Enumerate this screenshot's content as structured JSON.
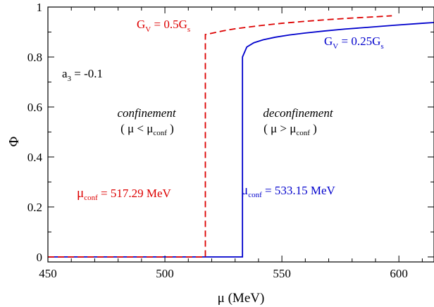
{
  "chart_data": {
    "type": "line",
    "xlabel": "μ (MeV)",
    "ylabel": "Φ",
    "xlim": [
      450,
      615
    ],
    "ylim": [
      -0.02,
      1.0
    ],
    "x_ticks": [
      450,
      500,
      550,
      600
    ],
    "x_tick_labels": [
      "450",
      "500",
      "550",
      "600"
    ],
    "y_ticks": [
      0,
      0.2,
      0.4,
      0.6,
      0.8,
      1.0
    ],
    "y_tick_labels": [
      "0",
      "0.2",
      "0.4",
      "0.6",
      "0.8",
      "1"
    ],
    "series": [
      {
        "name": "G_V = 0.25G_s",
        "color": "#0000cc",
        "dashed": false,
        "x": [
          450,
          533.15,
          533.15,
          535,
          538,
          542,
          547,
          553,
          560,
          568,
          577,
          587,
          598,
          610,
          615
        ],
        "y": [
          0.0,
          0.0,
          0.8,
          0.84,
          0.857,
          0.869,
          0.879,
          0.888,
          0.896,
          0.904,
          0.912,
          0.919,
          0.927,
          0.935,
          0.938
        ]
      },
      {
        "name": "G_V = 0.5G_s",
        "color": "#dd0000",
        "dashed": true,
        "x": [
          450,
          517.29,
          517.29,
          520,
          525,
          530,
          540,
          550,
          560,
          570,
          580,
          590,
          597
        ],
        "y": [
          0.0,
          0.0,
          0.89,
          0.895,
          0.905,
          0.913,
          0.925,
          0.935,
          0.943,
          0.95,
          0.956,
          0.961,
          0.965
        ]
      }
    ]
  },
  "annotations": {
    "param": {
      "main": "a",
      "sub": "3",
      "rest": " = -0.1"
    },
    "conf_title": "confinement",
    "conf_cond": {
      "open": "( μ < μ",
      "sub": "conf",
      "close": " )"
    },
    "deconf_title": "deconfinement",
    "deconf_cond": {
      "open": "( μ > μ",
      "sub": "conf",
      "close": " )"
    },
    "red_label": {
      "main": "G",
      "sub": "V",
      "mid": " = 0.5G",
      "sub2": "s"
    },
    "blue_label": {
      "main": "G",
      "sub": "V",
      "mid": " = 0.25G",
      "sub2": "s"
    },
    "red_mu": {
      "main": "μ",
      "sub": "conf",
      "rest": " = 517.29 MeV"
    },
    "blue_mu": {
      "main": "μ",
      "sub": "conf",
      "rest": " = 533.15 MeV"
    }
  }
}
